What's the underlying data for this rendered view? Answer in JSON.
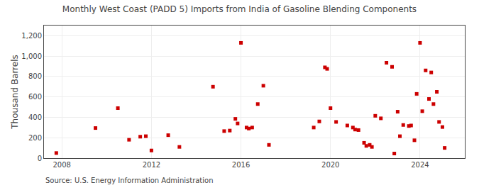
{
  "chart_data": {
    "type": "scatter",
    "title": "Monthly West Coast (PADD 5) Imports from India of Gasoline Blending Components",
    "ylabel": "Thousand Barrels",
    "annotations": [
      "Source: U.S. Energy Information Administration"
    ],
    "color": "#cc0000",
    "marker": "square",
    "grid": true,
    "xlim": [
      2007.2,
      2026.0
    ],
    "xticks": [
      2008,
      2012,
      2016,
      2020,
      2024
    ],
    "ylim": [
      0,
      1300
    ],
    "yticks": [
      0,
      200,
      400,
      600,
      800,
      {
        "value": 1000,
        "label": "1,000"
      },
      {
        "value": 1200,
        "label": "1,200"
      }
    ],
    "x": [
      2007.75,
      2009.5,
      2010.5,
      2011.0,
      2011.5,
      2011.75,
      2012.0,
      2012.75,
      2013.25,
      2014.75,
      2015.25,
      2015.5,
      2015.75,
      2015.85,
      2016.0,
      2016.25,
      2016.35,
      2016.5,
      2016.75,
      2017.0,
      2017.25,
      2019.25,
      2019.5,
      2019.75,
      2019.85,
      2020.0,
      2020.25,
      2020.75,
      2021.0,
      2021.1,
      2021.25,
      2021.5,
      2021.6,
      2021.75,
      2021.85,
      2022.0,
      2022.25,
      2022.5,
      2022.75,
      2022.85,
      2023.0,
      2023.1,
      2023.25,
      2023.5,
      2023.6,
      2023.75,
      2023.85,
      2024.0,
      2024.1,
      2024.25,
      2024.4,
      2024.5,
      2024.6,
      2024.75,
      2024.85,
      2025.0,
      2025.1
    ],
    "values": [
      50,
      295,
      490,
      180,
      210,
      215,
      75,
      225,
      110,
      700,
      265,
      270,
      385,
      340,
      1130,
      300,
      290,
      300,
      530,
      710,
      130,
      300,
      360,
      890,
      875,
      490,
      355,
      320,
      300,
      280,
      275,
      150,
      120,
      130,
      110,
      415,
      390,
      935,
      895,
      45,
      455,
      215,
      325,
      315,
      320,
      175,
      630,
      1130,
      460,
      860,
      580,
      840,
      530,
      650,
      355,
      305,
      100
    ]
  }
}
